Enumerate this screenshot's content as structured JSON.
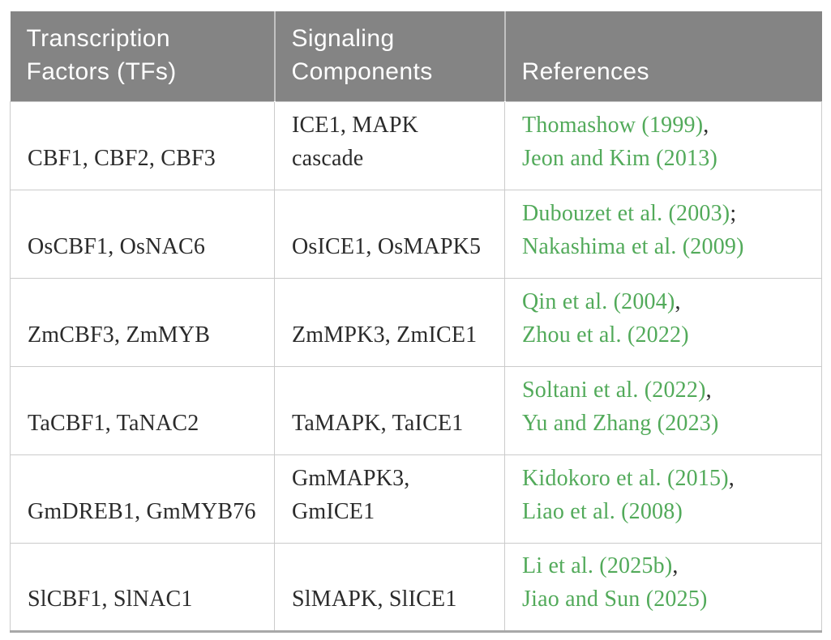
{
  "colors": {
    "header_bg": "#848484",
    "header_text": "#ffffff",
    "body_text": "#2b2b2b",
    "link_green": "#52aa5a",
    "border": "#cbcbcb",
    "outer_border": "#a8a8a8"
  },
  "table": {
    "headers": [
      {
        "label": "Transcription\nFactors (TFs)"
      },
      {
        "label": "Signaling\nComponents"
      },
      {
        "label": "References"
      }
    ],
    "rows": [
      {
        "tfs": "CBF1, CBF2, CBF3",
        "signaling": "ICE1, MAPK\ncascade",
        "refs": [
          {
            "text": "Thomashow (1999)",
            "sep": ","
          },
          {
            "text": "Jeon and Kim (2013)",
            "sep": ""
          }
        ]
      },
      {
        "tfs": "OsCBF1, OsNAC6",
        "signaling": "OsICE1, OsMAPK5",
        "refs": [
          {
            "text": "Dubouzet et al. (2003)",
            "sep": ";"
          },
          {
            "text": "Nakashima et al. (2009)",
            "sep": ""
          }
        ]
      },
      {
        "tfs": "ZmCBF3, ZmMYB",
        "signaling": "ZmMPK3, ZmICE1",
        "refs": [
          {
            "text": "Qin et al. (2004)",
            "sep": ","
          },
          {
            "text": "Zhou et al. (2022)",
            "sep": ""
          }
        ]
      },
      {
        "tfs": "TaCBF1, TaNAC2",
        "signaling": "TaMAPK, TaICE1",
        "refs": [
          {
            "text": "Soltani et al. (2022)",
            "sep": ","
          },
          {
            "text": "Yu and Zhang (2023)",
            "sep": ""
          }
        ]
      },
      {
        "tfs": "GmDREB1, GmMYB76",
        "signaling": "GmMAPK3,\nGmICE1",
        "refs": [
          {
            "text": "Kidokoro et al. (2015)",
            "sep": ","
          },
          {
            "text": "Liao et al. (2008)",
            "sep": ""
          }
        ]
      },
      {
        "tfs": "SlCBF1, SlNAC1",
        "signaling": "SlMAPK, SlICE1",
        "refs": [
          {
            "text": "Li et al. (2025b)",
            "sep": ","
          },
          {
            "text": "Jiao and Sun (2025)",
            "sep": ""
          }
        ]
      }
    ]
  }
}
